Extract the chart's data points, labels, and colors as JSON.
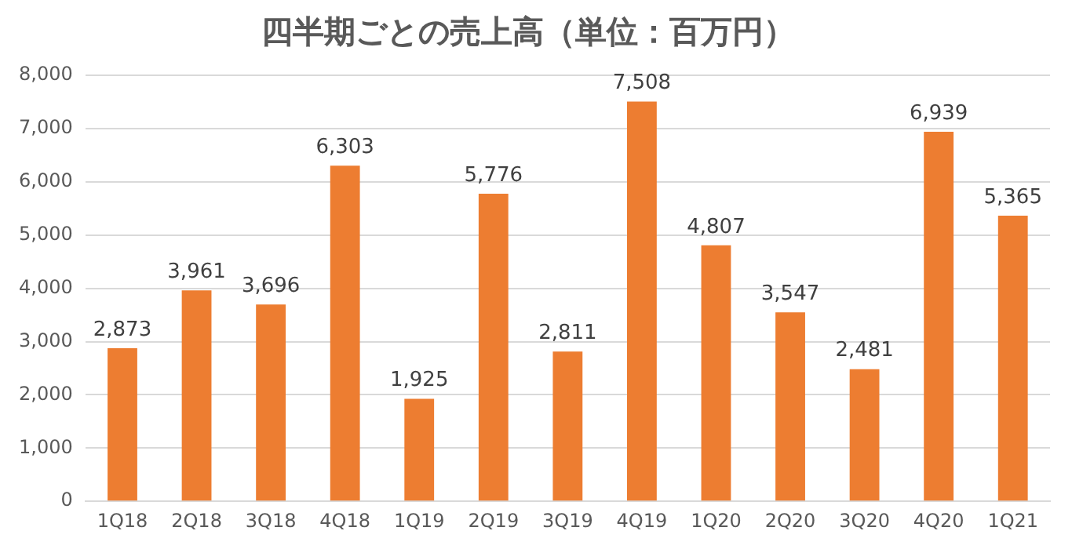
{
  "chart_data": {
    "type": "bar",
    "title": "四半期ごとの売上高（単位：百万円）",
    "categories": [
      "1Q18",
      "2Q18",
      "3Q18",
      "4Q18",
      "1Q19",
      "2Q19",
      "3Q19",
      "4Q19",
      "1Q20",
      "2Q20",
      "3Q20",
      "4Q20",
      "1Q21"
    ],
    "values": [
      2873,
      3961,
      3696,
      6303,
      1925,
      5776,
      2811,
      7508,
      4807,
      3547,
      2481,
      6939,
      5365
    ],
    "value_labels": [
      "2,873",
      "3,961",
      "3,696",
      "6,303",
      "1,925",
      "5,776",
      "2,811",
      "7,508",
      "4,807",
      "3,547",
      "2,481",
      "6,939",
      "5,365"
    ],
    "color": "#ed7d31",
    "ylim": [
      0,
      8000
    ],
    "yticks": [
      {
        "value": 0,
        "label": "0"
      },
      {
        "value": 1000,
        "label": "1,000"
      },
      {
        "value": 2000,
        "label": "2,000"
      },
      {
        "value": 3000,
        "label": "3,000"
      },
      {
        "value": 4000,
        "label": "4,000"
      },
      {
        "value": 5000,
        "label": "5,000"
      },
      {
        "value": 6000,
        "label": "6,000"
      },
      {
        "value": 7000,
        "label": "7,000"
      },
      {
        "value": 8000,
        "label": "8,000"
      }
    ],
    "grid": "y"
  }
}
